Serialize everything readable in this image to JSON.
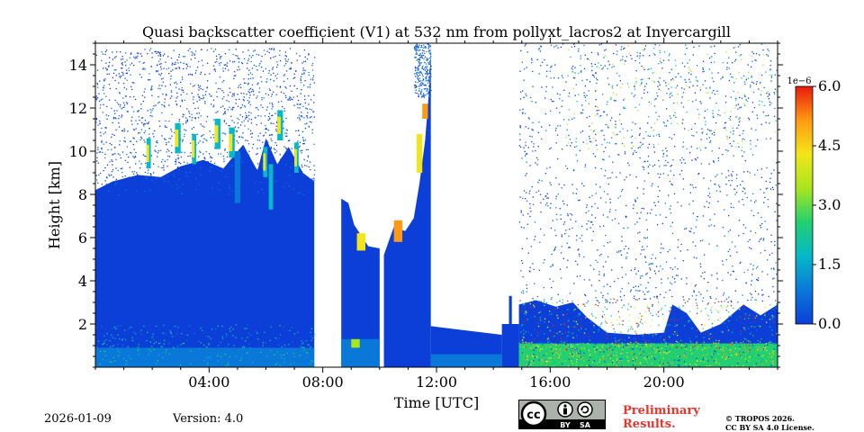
{
  "chart_data": {
    "type": "heatmap",
    "title": "Quasi backscatter coefficient (V1) at 532 nm from pollyxt_lacros2 at Invercargill",
    "xlabel": "Time [UTC]",
    "ylabel": "Height [km]",
    "xlim": [
      0,
      24
    ],
    "ylim": [
      0,
      15
    ],
    "x_ticks": [
      {
        "value": 4,
        "label": "04:00"
      },
      {
        "value": 8,
        "label": "08:00"
      },
      {
        "value": 12,
        "label": "12:00"
      },
      {
        "value": 16,
        "label": "16:00"
      },
      {
        "value": 20,
        "label": "20:00"
      }
    ],
    "y_ticks": [
      {
        "value": 2,
        "label": "2"
      },
      {
        "value": 4,
        "label": "4"
      },
      {
        "value": 6,
        "label": "6"
      },
      {
        "value": 8,
        "label": "8"
      },
      {
        "value": 10,
        "label": "10"
      },
      {
        "value": 12,
        "label": "12"
      },
      {
        "value": 14,
        "label": "14"
      }
    ],
    "colorbar": {
      "scale_label": "1e−6",
      "range": [
        0,
        6
      ],
      "ticks": [
        {
          "value": 0,
          "label": "0.0"
        },
        {
          "value": 1.5,
          "label": "1.5"
        },
        {
          "value": 3,
          "label": "3.0"
        },
        {
          "value": 4.5,
          "label": "4.5"
        },
        {
          "value": 6,
          "label": "6.0"
        }
      ],
      "colors": [
        "#0b3fd8",
        "#0a78d8",
        "#06b8c8",
        "#22d070",
        "#a8e61e",
        "#f2e61a",
        "#ff9a12",
        "#e81a0e"
      ]
    },
    "signal_regions": [
      {
        "x0": 0.0,
        "x1": 7.7,
        "top_km": 9.0,
        "state": "continuous backscatter, clouds near 10-12 km"
      },
      {
        "x0": 7.7,
        "x1": 8.65,
        "state": "no data"
      },
      {
        "x0": 8.65,
        "x1": 10.0,
        "top_km": 7.8,
        "state": "cloud deck lowering to 5.5 km"
      },
      {
        "x0": 10.0,
        "x1": 10.15,
        "state": "no data"
      },
      {
        "x0": 10.15,
        "x1": 11.8,
        "top_km": 13.0,
        "state": "cirrus up to 13 km"
      },
      {
        "x0": 11.8,
        "x1": 14.3,
        "top_km": 1.8,
        "state": "boundary layer only"
      },
      {
        "x0": 14.9,
        "x1": 24.0,
        "top_km": 3.5,
        "state": "low clouds below 3.5 km, noise above"
      }
    ]
  },
  "footer": {
    "date": "2026-01-09",
    "version": "Version: 4.0",
    "license_badge": {
      "cc": "cc",
      "by": "BY",
      "sa": "SA"
    },
    "preliminary": [
      "Preliminary",
      "Results."
    ],
    "copyright": [
      "© TROPOS 2026.",
      "CC BY SA 4.0 License."
    ]
  }
}
